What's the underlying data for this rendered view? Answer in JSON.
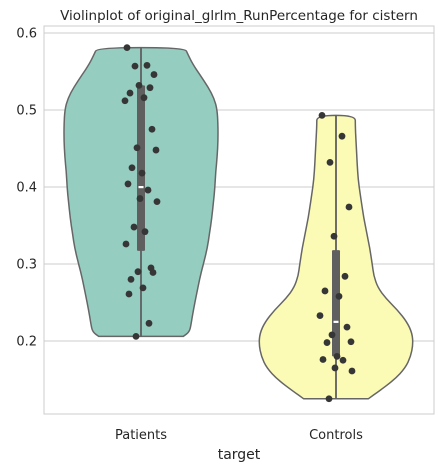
{
  "chart_data": {
    "type": "violin",
    "title": "Violinplot of original_glrlm_RunPercentage for cistern",
    "xlabel": "target",
    "ylabel": "",
    "categories": [
      "Patients",
      "Controls"
    ],
    "ylim": [
      0.1,
      0.605
    ],
    "yticks": [
      0.2,
      0.3,
      0.4,
      0.5,
      0.6
    ],
    "ytick_labels": [
      "0.2",
      "0.3",
      "0.4",
      "0.5",
      "0.6"
    ],
    "grid": true,
    "colors": {
      "Patients": "#96cdc1",
      "Controls": "#fbfbb6",
      "outline": "#666666",
      "points": "#363636",
      "grid": "#cccccc",
      "spine": "#cccccc"
    },
    "series": [
      {
        "category": "Patients",
        "min": 0.206,
        "max": 0.581,
        "q1": 0.317,
        "median": 0.4,
        "q3": 0.532,
        "density_width": [
          [
            0.206,
            0.55
          ],
          [
            0.212,
            0.63
          ],
          [
            0.222,
            0.65
          ],
          [
            0.24,
            0.68
          ],
          [
            0.26,
            0.72
          ],
          [
            0.28,
            0.76
          ],
          [
            0.3,
            0.81
          ],
          [
            0.32,
            0.86
          ],
          [
            0.34,
            0.89
          ],
          [
            0.36,
            0.92
          ],
          [
            0.38,
            0.94
          ],
          [
            0.4,
            0.96
          ],
          [
            0.42,
            0.97
          ],
          [
            0.44,
            0.99
          ],
          [
            0.46,
            1.0
          ],
          [
            0.48,
            1.0
          ],
          [
            0.5,
            0.99
          ],
          [
            0.515,
            0.95
          ],
          [
            0.53,
            0.87
          ],
          [
            0.545,
            0.77
          ],
          [
            0.56,
            0.67
          ],
          [
            0.572,
            0.61
          ],
          [
            0.581,
            0.57
          ]
        ],
        "points": [
          0.581,
          0.558,
          0.557,
          0.546,
          0.532,
          0.529,
          0.522,
          0.516,
          0.512,
          0.475,
          0.451,
          0.448,
          0.425,
          0.418,
          0.404,
          0.396,
          0.385,
          0.381,
          0.348,
          0.342,
          0.326,
          0.295,
          0.29,
          0.289,
          0.28,
          0.269,
          0.261,
          0.223,
          0.206
        ]
      },
      {
        "category": "Controls",
        "min": 0.125,
        "max": 0.493,
        "q1": 0.18,
        "median": 0.225,
        "q3": 0.318,
        "density_width": [
          [
            0.125,
            0.42
          ],
          [
            0.135,
            0.56
          ],
          [
            0.15,
            0.76
          ],
          [
            0.165,
            0.9
          ],
          [
            0.18,
            0.97
          ],
          [
            0.195,
            1.0
          ],
          [
            0.21,
            0.99
          ],
          [
            0.225,
            0.92
          ],
          [
            0.24,
            0.8
          ],
          [
            0.255,
            0.65
          ],
          [
            0.27,
            0.54
          ],
          [
            0.285,
            0.49
          ],
          [
            0.3,
            0.47
          ],
          [
            0.32,
            0.44
          ],
          [
            0.34,
            0.4
          ],
          [
            0.36,
            0.36
          ],
          [
            0.38,
            0.33
          ],
          [
            0.4,
            0.3
          ],
          [
            0.42,
            0.28
          ],
          [
            0.44,
            0.27
          ],
          [
            0.46,
            0.26
          ],
          [
            0.48,
            0.25
          ],
          [
            0.493,
            0.25
          ]
        ],
        "points": [
          0.493,
          0.466,
          0.432,
          0.374,
          0.336,
          0.284,
          0.265,
          0.258,
          0.233,
          0.218,
          0.208,
          0.199,
          0.198,
          0.18,
          0.176,
          0.175,
          0.165,
          0.161,
          0.125
        ]
      }
    ]
  }
}
